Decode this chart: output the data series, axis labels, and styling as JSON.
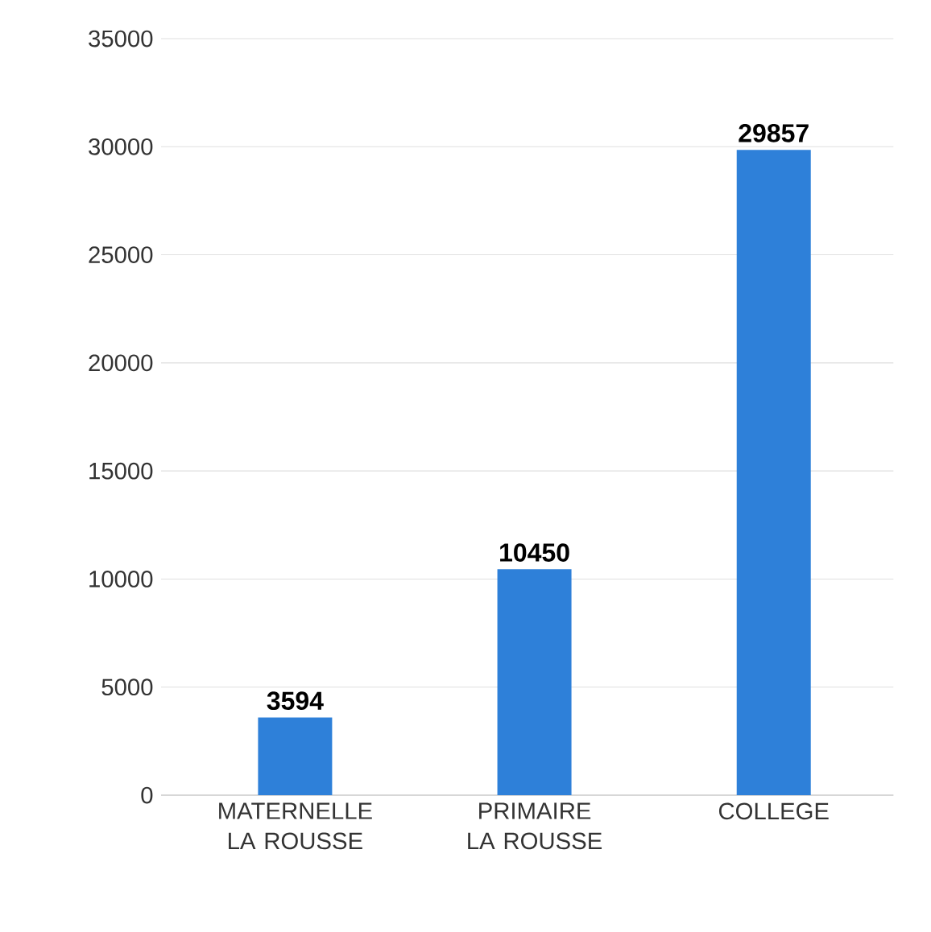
{
  "chart_data": {
    "type": "bar",
    "categories": [
      "MATERNELLE LA ROUSSE",
      "PRIMAIRE LA ROUSSE",
      "COLLEGE"
    ],
    "values": [
      3594,
      10450,
      29857
    ],
    "color": "#2e80d9",
    "ylim": [
      0,
      35000
    ],
    "yticks": [
      0,
      5000,
      10000,
      15000,
      20000,
      25000,
      30000,
      35000
    ],
    "grid": "y",
    "data_labels": true
  }
}
